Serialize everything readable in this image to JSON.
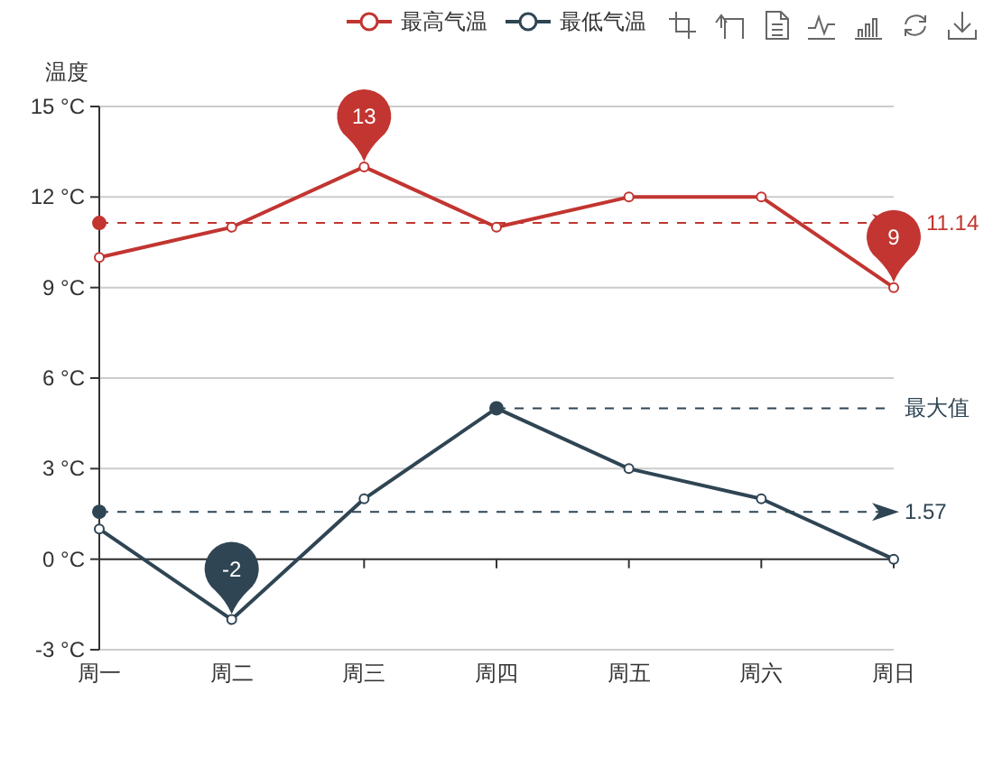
{
  "chart_data": {
    "type": "line",
    "ylabel": "温度",
    "categories": [
      "周一",
      "周二",
      "周三",
      "周四",
      "周五",
      "周六",
      "周日"
    ],
    "series": [
      {
        "name": "最高气温",
        "color": "#c23531",
        "values": [
          10,
          11,
          13,
          11,
          12,
          12,
          9
        ]
      },
      {
        "name": "最低气温",
        "color": "#2f4554",
        "values": [
          1,
          -2,
          2,
          5,
          3,
          2,
          0
        ]
      }
    ],
    "ylim": [
      -3,
      15
    ],
    "yticks": [
      {
        "value": -3,
        "label": "-3 °C"
      },
      {
        "value": 0,
        "label": "0 °C"
      },
      {
        "value": 3,
        "label": "3 °C"
      },
      {
        "value": 6,
        "label": "6 °C"
      },
      {
        "value": 9,
        "label": "9 °C"
      },
      {
        "value": 12,
        "label": "12 °C"
      },
      {
        "value": 15,
        "label": "15 °C"
      }
    ],
    "grid": "y",
    "legend": "top",
    "marker": "circle",
    "ref_lines": [
      {
        "axis": "y",
        "value": 11.14,
        "label": "11.14",
        "color": "#c23531",
        "line_style": "dashed"
      },
      {
        "axis": "y",
        "value": 1.57,
        "label": "1.57",
        "color": "#2f4554",
        "line_style": "dashed"
      },
      {
        "axis": "y",
        "value": 5,
        "label": "最大值",
        "color": "#2f4554",
        "line_style": "dashed"
      }
    ],
    "annotations": [
      {
        "text": "13",
        "x": "周三",
        "y": 13
      },
      {
        "text": "9",
        "x": "周日",
        "y": 9
      },
      {
        "text": "-2",
        "x": "周二",
        "y": -2
      }
    ]
  }
}
